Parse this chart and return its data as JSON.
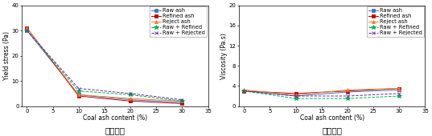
{
  "x": [
    0,
    10,
    20,
    30
  ],
  "yield_stress": {
    "Raw ash": [
      30.0,
      4.5,
      2.5,
      1.5
    ],
    "Refined ash": [
      31.0,
      4.0,
      2.0,
      1.0
    ],
    "Reject ash": [
      31.0,
      4.5,
      3.0,
      2.0
    ],
    "Raw + Refined": [
      30.0,
      6.0,
      4.5,
      2.0
    ],
    "Raw + Rejected": [
      30.0,
      7.0,
      5.0,
      2.5
    ]
  },
  "viscosity": {
    "Raw ash": [
      3.0,
      2.0,
      2.8,
      3.2
    ],
    "Refined ash": [
      3.0,
      2.5,
      3.0,
      3.5
    ],
    "Reject ash": [
      3.2,
      2.2,
      3.2,
      3.5
    ],
    "Raw + Refined": [
      3.0,
      1.5,
      1.5,
      2.0
    ],
    "Raw + Rejected": [
      3.0,
      2.0,
      2.0,
      2.5
    ]
  },
  "colors": {
    "Raw ash": "#4472c4",
    "Refined ash": "#c00000",
    "Reject ash": "#ed7d31",
    "Raw + Refined": "#00b050",
    "Raw + Rejected": "#7030a0"
  },
  "markers": {
    "Raw ash": "s",
    "Refined ash": "s",
    "Reject ash": "^",
    "Raw + Refined": "*",
    "Raw + Rejected": "x"
  },
  "linestyles": {
    "Raw ash": "-",
    "Refined ash": "-",
    "Reject ash": "-",
    "Raw + Refined": "--",
    "Raw + Rejected": "--"
  },
  "ylabel_left": "Yield stress (Pa)",
  "ylabel_right": "Viscosity (Pa.s)",
  "xlabel": "Coal ash content (%)",
  "ylim_left": [
    0,
    40
  ],
  "ylim_right": [
    0,
    20
  ],
  "yticks_left": [
    0,
    10,
    20,
    30,
    40
  ],
  "yticks_right": [
    0,
    4,
    8,
    12,
    16,
    20
  ],
  "xlim": [
    -1,
    35
  ],
  "xticks": [
    0,
    5,
    10,
    15,
    20,
    25,
    30,
    35
  ],
  "label_left": "항복응력",
  "label_right": "소성점도",
  "legend_fontsize": 4.8,
  "axis_fontsize": 5.5,
  "tick_fontsize": 5.0,
  "label_fontsize": 7.5,
  "markersize": 2.8,
  "linewidth": 0.7
}
